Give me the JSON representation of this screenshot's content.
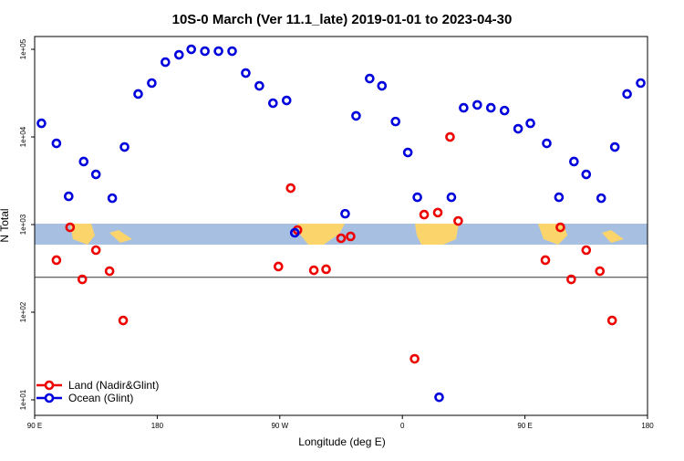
{
  "chart_data": {
    "type": "scatter",
    "title": "10S-0 March (Ver 11.1_late)   2019-01-01 to 2023-04-30",
    "xlabel": "Longitude (deg E)",
    "ylabel": "N Total",
    "log_y": true,
    "legend": "bottom left",
    "xlim": [
      90,
      540
    ],
    "ylim": [
      6.65,
      140000
    ],
    "xticks": [
      {
        "value": 90,
        "label": "90 E"
      },
      180,
      {
        "value": 270,
        "label": "90 W"
      },
      {
        "value": 360,
        "label": "0"
      },
      {
        "value": 450,
        "label": "90 E"
      },
      {
        "value": 540,
        "label": "180"
      }
    ],
    "yticks": [
      {
        "value": 10,
        "label": "1e+01"
      },
      {
        "value": 100,
        "label": "1e+02"
      },
      {
        "value": 1000,
        "label": "1e+03"
      },
      {
        "value": 10000,
        "label": "1e+04"
      },
      {
        "value": 100000,
        "label": "1e+05"
      }
    ],
    "hline": 250,
    "series": [
      {
        "name": "Land (Nadir&Glint)",
        "color": "#ee0000",
        "x": [
          106,
          116,
          125,
          135,
          145,
          155,
          269,
          278,
          283,
          295,
          304,
          315,
          322,
          369,
          376,
          386,
          395,
          401,
          465,
          476,
          484,
          495,
          505,
          514
        ],
        "values": [
          393,
          930,
          237,
          511,
          294,
          80.5,
          332,
          2610,
          866,
          301,
          309,
          698,
          733,
          29.4,
          1300,
          1370,
          10000,
          1100,
          393,
          930,
          237,
          511,
          294,
          80.5
        ]
      },
      {
        "name": "Ocean (Glint)",
        "color": "#0000dd",
        "x": [
          95,
          106,
          115,
          126,
          135,
          147,
          156,
          166,
          176,
          186,
          196,
          205,
          215,
          225,
          235,
          245,
          255,
          265,
          275,
          281,
          318,
          326,
          336,
          345,
          355,
          364,
          371,
          387,
          396,
          405,
          415,
          425,
          435,
          445,
          454,
          466,
          475,
          486,
          495,
          506,
          516,
          525,
          535
        ],
        "values": [
          14300,
          8450,
          2100,
          5240,
          3740,
          2000,
          7680,
          30900,
          41200,
          71400,
          86600,
          100000,
          95300,
          95300,
          95300,
          53600,
          38300,
          24300,
          26100,
          806,
          1330,
          17400,
          46400,
          38300,
          15000,
          6650,
          2050,
          10.7,
          2050,
          21500,
          23200,
          21500,
          20000,
          12400,
          14300,
          8450,
          2050,
          5240,
          3740,
          2000,
          7680,
          30900,
          41200
        ]
      }
    ]
  }
}
